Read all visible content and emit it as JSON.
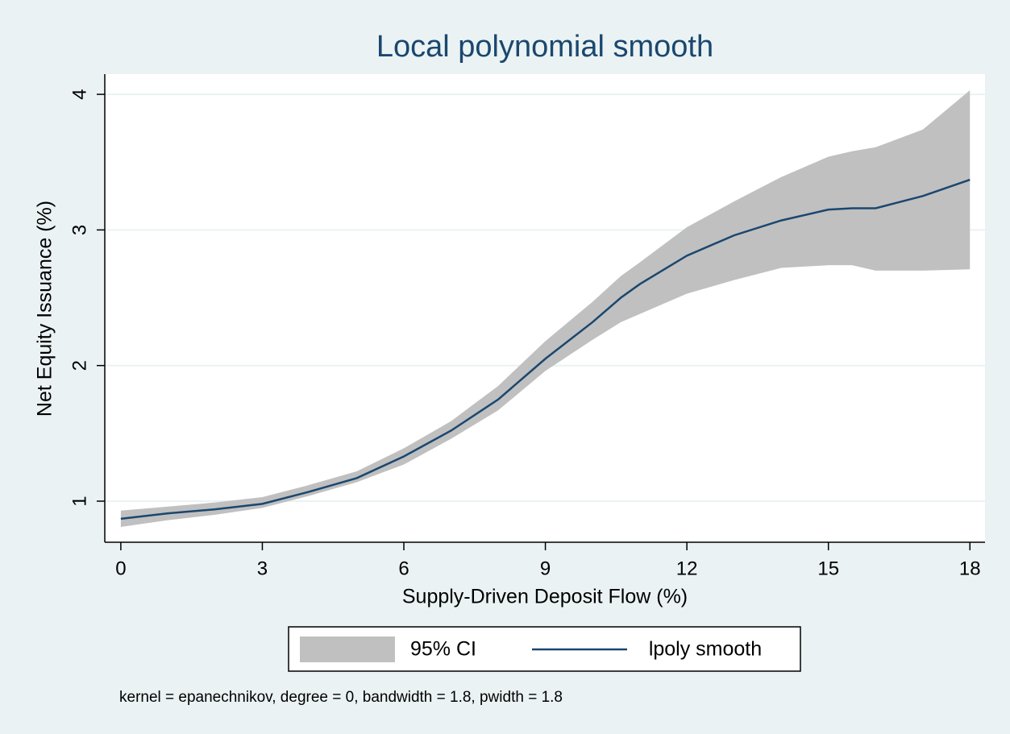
{
  "chart_data": {
    "type": "lpoly",
    "title": "Local polynomial smooth",
    "x_label": "Supply-Driven Deposit Flow (%)",
    "y_label": "Net Equity Issuance (%)",
    "note": "kernel = epanechnikov, degree = 0, bandwidth = 1.8, pwidth = 1.8",
    "x": [
      0,
      1,
      2,
      3,
      4,
      5,
      6,
      7,
      8,
      9,
      10,
      10.6,
      11,
      12,
      13,
      14,
      15,
      15.5,
      16,
      17,
      18
    ],
    "series": [
      {
        "name": "95% CI",
        "color": "#c0c0c0",
        "lower": [
          0.81,
          0.86,
          0.9,
          0.95,
          1.04,
          1.14,
          1.27,
          1.46,
          1.67,
          1.96,
          2.19,
          2.32,
          2.38,
          2.53,
          2.63,
          2.72,
          2.74,
          2.74,
          2.7,
          2.7,
          2.71
        ],
        "upper": [
          0.93,
          0.96,
          0.99,
          1.03,
          1.12,
          1.22,
          1.39,
          1.59,
          1.85,
          2.18,
          2.47,
          2.66,
          2.76,
          3.02,
          3.21,
          3.39,
          3.54,
          3.58,
          3.61,
          3.74,
          4.03
        ]
      },
      {
        "name": "lpoly smooth",
        "color": "#1a476f",
        "values": [
          0.87,
          0.91,
          0.94,
          0.98,
          1.07,
          1.17,
          1.33,
          1.52,
          1.75,
          2.05,
          2.32,
          2.5,
          2.6,
          2.81,
          2.96,
          3.07,
          3.15,
          3.16,
          3.16,
          3.25,
          3.37
        ]
      }
    ],
    "xlim": [
      -0.34,
      18.32
    ],
    "ylim": [
      0.697,
      4.149
    ],
    "xticks": [
      0,
      3,
      6,
      9,
      12,
      15,
      18
    ],
    "yticks": [
      1,
      2,
      3,
      4
    ],
    "grid": true
  }
}
